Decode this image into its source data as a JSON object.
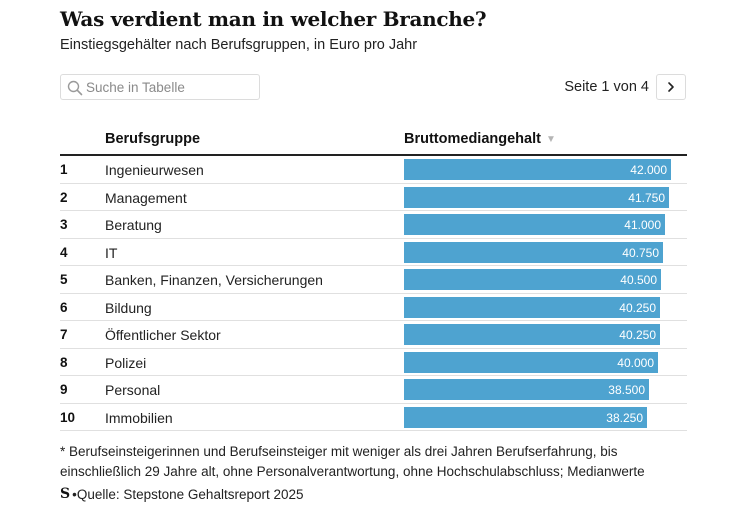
{
  "header": {
    "title": "Was verdient man in welcher Branche?",
    "subtitle": "Einstiegsgehälter nach Berufsgruppen, in Euro pro Jahr"
  },
  "search": {
    "placeholder": "Suche in Tabelle",
    "value": ""
  },
  "pager": {
    "label": "Seite 1 von 4",
    "next_glyph": "›"
  },
  "table": {
    "columns": [
      "Berufsgruppe",
      "Bruttomediangehalt"
    ],
    "sort_glyph": "▼"
  },
  "chart_data": {
    "type": "table",
    "title": "Was verdient man in welcher Branche?",
    "subtitle": "Einstiegsgehälter nach Berufsgruppen, in Euro pro Jahr",
    "value_column": "Bruttomediangehalt",
    "bar_color": "#4ea3d0",
    "bar_scale_max": 42000,
    "rows": [
      {
        "rank": "1",
        "group": "Ingenieurwesen",
        "value": 42000,
        "label": "42.000"
      },
      {
        "rank": "2",
        "group": "Management",
        "value": 41750,
        "label": "41.750"
      },
      {
        "rank": "3",
        "group": "Beratung",
        "value": 41000,
        "label": "41.000"
      },
      {
        "rank": "4",
        "group": "IT",
        "value": 40750,
        "label": "40.750"
      },
      {
        "rank": "5",
        "group": "Banken, Finanzen, Versicherungen",
        "value": 40500,
        "label": "40.500"
      },
      {
        "rank": "6",
        "group": "Bildung",
        "value": 40250,
        "label": "40.250"
      },
      {
        "rank": "7",
        "group": "Öffentlicher Sektor",
        "value": 40250,
        "label": "40.250"
      },
      {
        "rank": "8",
        "group": "Polizei",
        "value": 40000,
        "label": "40.000"
      },
      {
        "rank": "9",
        "group": "Personal",
        "value": 38500,
        "label": "38.500"
      },
      {
        "rank": "10",
        "group": "Immobilien",
        "value": 38250,
        "label": "38.250"
      }
    ]
  },
  "footer": {
    "footnote": "* Berufseinsteigerinnen und Berufseinsteiger mit weniger als drei Jahren Berufserfahrung, bis einschließlich 29 Jahre alt, ohne Personalverantwortung, ohne Hochschulabschluss; Medianwerte",
    "logo_text": "S",
    "source": "•Quelle: Stepstone Gehaltsreport 2025"
  }
}
